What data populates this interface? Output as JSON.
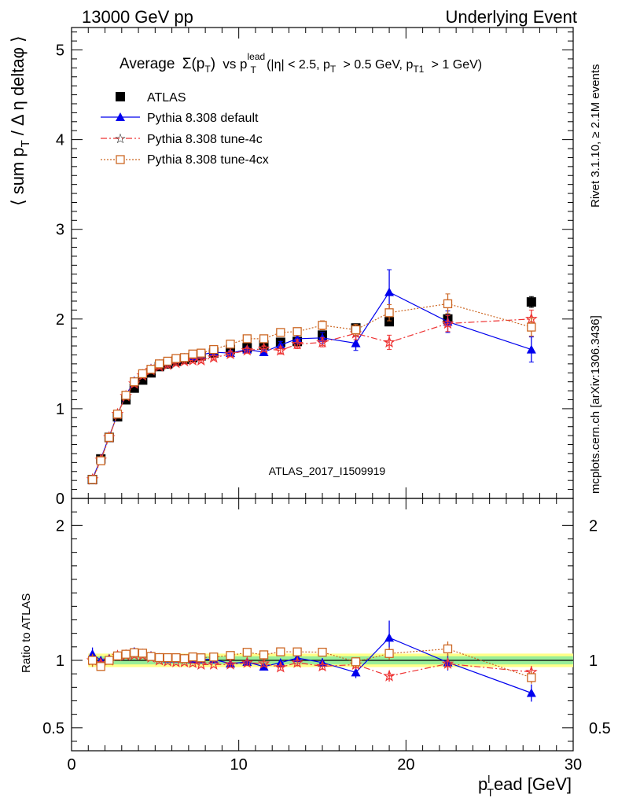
{
  "header": {
    "left": "13000 GeV pp",
    "right": "Underlying Event"
  },
  "side": {
    "rivet": "Rivet 3.1.10, ≥ 2.1M events",
    "mcplots": "mcplots.cern.ch [arXiv:1306.3436]"
  },
  "chart_data": {
    "type": "scatter",
    "title": "Average Σ(pT) vs pTlead (|η| < 2.5, pT > 0.5 GeV, pT1 > 1 GeV)",
    "title_parts": {
      "word": "Average",
      "sigma": "Σ(p",
      "sub_t": "T",
      "close": ")",
      "vs": "vs p",
      "sup_lead": "lead",
      "rest1": "(|η| < 2.5, p",
      "rest2": "> 0.5 GeV, p",
      "sub_t1": "T1",
      "rest3": "> 1 GeV)"
    },
    "ylabel_parts": {
      "a": "⟨ sum p",
      "sub": "T",
      "b": "/ Δ η deltaφ ⟩"
    },
    "xlabel_parts": {
      "p": "p",
      "sup": "l",
      "sub": "T",
      "rest": "ead [GeV]"
    },
    "ratio_ylabel": "Ratio to ATLAS",
    "watermark": "ATLAS_2017_I1509919",
    "xlim": [
      0,
      30
    ],
    "ylim": [
      0,
      5.25
    ],
    "ratio_ylim": [
      0.33,
      2.2
    ],
    "x_ticks": [
      0,
      10,
      20,
      30
    ],
    "y_ticks": [
      0,
      1,
      2,
      3,
      4,
      5
    ],
    "ratio_y_ticks": [
      0.5,
      1,
      2
    ],
    "legend_position": "top-left",
    "x": [
      1.25,
      1.75,
      2.25,
      2.75,
      3.25,
      3.75,
      4.25,
      4.75,
      5.25,
      5.75,
      6.25,
      6.75,
      7.25,
      7.75,
      8.5,
      9.5,
      10.5,
      11.5,
      12.5,
      13.5,
      15,
      17,
      19,
      22.5,
      27.5
    ],
    "series": [
      {
        "name": "ATLAS",
        "color": "#000000",
        "marker": "filled-square",
        "line": "none",
        "values": [
          0.21,
          0.44,
          0.68,
          0.91,
          1.1,
          1.23,
          1.32,
          1.4,
          1.47,
          1.5,
          1.53,
          1.55,
          1.57,
          1.59,
          1.62,
          1.66,
          1.68,
          1.71,
          1.74,
          1.75,
          1.82,
          1.9,
          1.97,
          2.0,
          2.19
        ],
        "errors": [
          0.01,
          0.01,
          0.01,
          0.01,
          0.01,
          0.01,
          0.01,
          0.01,
          0.01,
          0.01,
          0.01,
          0.01,
          0.01,
          0.02,
          0.02,
          0.02,
          0.02,
          0.02,
          0.03,
          0.03,
          0.03,
          0.04,
          0.04,
          0.05,
          0.06
        ]
      },
      {
        "name": "Pythia 8.308 default",
        "color": "#0000ee",
        "marker": "triangle",
        "line": "solid",
        "values": [
          0.22,
          0.44,
          0.69,
          0.94,
          1.15,
          1.31,
          1.39,
          1.45,
          1.5,
          1.52,
          1.55,
          1.57,
          1.58,
          1.6,
          1.63,
          1.62,
          1.66,
          1.63,
          1.71,
          1.78,
          1.79,
          1.73,
          2.3,
          1.97,
          1.66
        ],
        "errors": [
          0.01,
          0.01,
          0.01,
          0.01,
          0.01,
          0.01,
          0.01,
          0.02,
          0.02,
          0.02,
          0.02,
          0.02,
          0.02,
          0.02,
          0.02,
          0.03,
          0.03,
          0.03,
          0.04,
          0.05,
          0.06,
          0.08,
          0.25,
          0.12,
          0.14
        ]
      },
      {
        "name": "Pythia 8.308 tune-4c",
        "color": "#ee3333",
        "marker": "star",
        "line": "dashdot",
        "values": [
          0.21,
          0.43,
          0.68,
          0.94,
          1.14,
          1.28,
          1.37,
          1.43,
          1.47,
          1.49,
          1.51,
          1.53,
          1.54,
          1.54,
          1.57,
          1.61,
          1.65,
          1.67,
          1.65,
          1.72,
          1.74,
          1.84,
          1.74,
          1.95,
          2.0
        ],
        "errors": [
          0.01,
          0.01,
          0.01,
          0.01,
          0.01,
          0.01,
          0.01,
          0.02,
          0.02,
          0.02,
          0.02,
          0.02,
          0.02,
          0.02,
          0.02,
          0.03,
          0.03,
          0.03,
          0.04,
          0.05,
          0.05,
          0.07,
          0.08,
          0.09,
          0.1
        ]
      },
      {
        "name": "Pythia 8.308 tune-4cx",
        "color": "#cc6622",
        "marker": "open-square",
        "line": "dotted",
        "values": [
          0.21,
          0.42,
          0.68,
          0.94,
          1.15,
          1.3,
          1.39,
          1.44,
          1.5,
          1.53,
          1.56,
          1.57,
          1.61,
          1.62,
          1.66,
          1.72,
          1.78,
          1.78,
          1.85,
          1.86,
          1.93,
          1.88,
          2.07,
          2.17,
          1.91
        ],
        "errors": [
          0.01,
          0.01,
          0.01,
          0.01,
          0.01,
          0.01,
          0.01,
          0.02,
          0.02,
          0.02,
          0.02,
          0.02,
          0.02,
          0.02,
          0.02,
          0.03,
          0.03,
          0.03,
          0.04,
          0.04,
          0.05,
          0.06,
          0.09,
          0.11,
          0.1
        ]
      }
    ],
    "ratio_band": {
      "xmin": 1.0,
      "xmax": 30,
      "inner_halfwidth": 0.03,
      "outer_halfwidth": 0.05
    }
  }
}
